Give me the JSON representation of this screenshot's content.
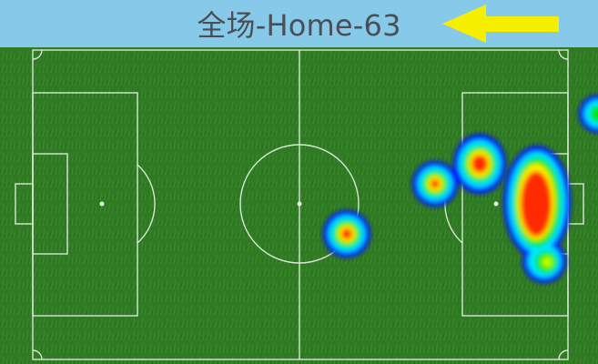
{
  "header": {
    "title": "全场-Home-63",
    "background_color": "#87c9e8",
    "text_color": "#4a4f55",
    "direction_indicator": {
      "icon": "arrow-left-icon",
      "color": "#f7ef00",
      "direction": "left"
    }
  },
  "pitch": {
    "grass_color": "#2f7a22",
    "line_color": "#e8f1e8"
  },
  "heatmap": {
    "colormap": [
      "#0000ff",
      "#00ffff",
      "#00ff00",
      "#ffff00",
      "#ff0000"
    ]
  }
}
